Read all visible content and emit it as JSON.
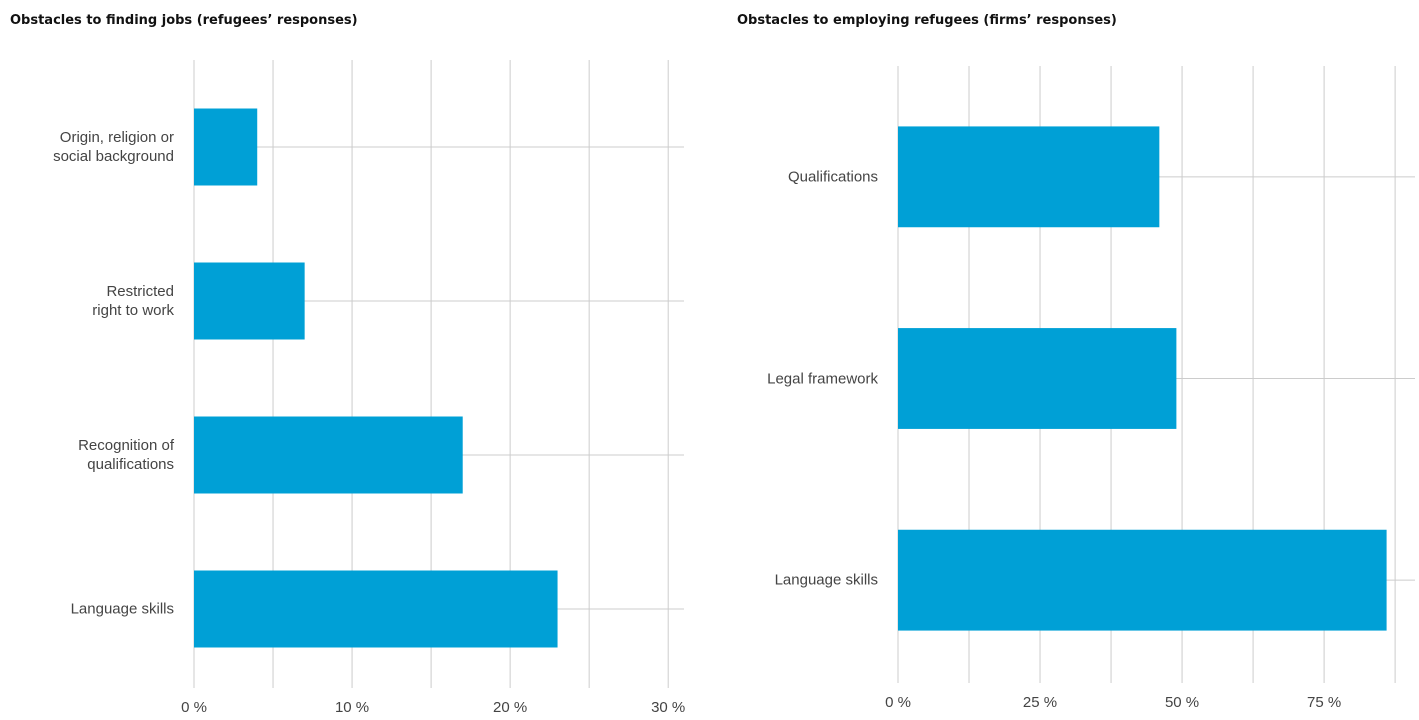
{
  "chart_data": [
    {
      "type": "bar",
      "orientation": "horizontal",
      "title": "Obstacles to finding jobs (refugees’ responses)",
      "categories": [
        "Origin, religion or\nsocial background",
        "Restricted\nright to work",
        "Recognition of\nqualifications",
        "Language skills"
      ],
      "values": [
        4,
        7,
        17,
        23
      ],
      "color": "#00a0d6",
      "xlim": [
        0,
        31
      ],
      "xticks": [
        {
          "value": 0,
          "label": "0 %"
        },
        {
          "value": 10,
          "label": "10 %"
        },
        {
          "value": 20,
          "label": "20 %"
        },
        {
          "value": 30,
          "label": "30 %"
        }
      ],
      "minor_xticks": [
        5,
        15,
        25
      ],
      "grid": true
    },
    {
      "type": "bar",
      "orientation": "horizontal",
      "title": "Obstacles to employing refugees (firms’ responses)",
      "categories": [
        "Qualifications",
        "Legal framework",
        "Language skills"
      ],
      "values": [
        46,
        49,
        86
      ],
      "color": "#00a0d6",
      "xlim": [
        0,
        91
      ],
      "xticks": [
        {
          "value": 0,
          "label": "0 %"
        },
        {
          "value": 25,
          "label": "25 %"
        },
        {
          "value": 50,
          "label": "50 %"
        },
        {
          "value": 75,
          "label": "75 %"
        }
      ],
      "minor_xticks": [
        12.5,
        37.5,
        62.5,
        87.5
      ],
      "grid": true
    }
  ]
}
